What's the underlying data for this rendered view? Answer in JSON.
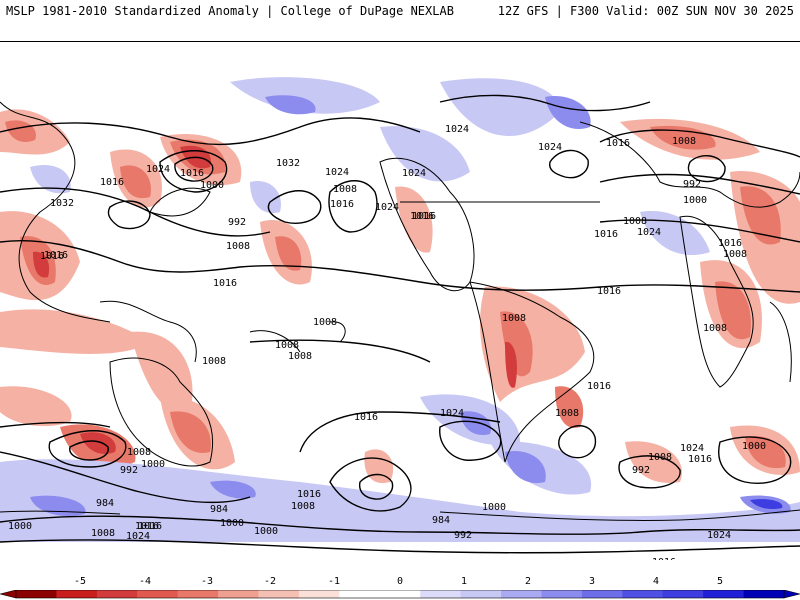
{
  "header": {
    "left_title": "MSLP 1981-2010 Standardized Anomaly | College of DuPage NEXLAB",
    "right_title": "12Z GFS | F300 Valid: 00Z SUN NOV 30 2025"
  },
  "map": {
    "projection": "global cylindrical, Pacific-centered",
    "anomaly_colors": {
      "neg_strong": "#d23c3c",
      "neg_mid": "#e8796a",
      "neg_weak": "#f5b2a4",
      "pos_weak": "#c8c8f5",
      "pos_mid": "#8c8cee",
      "pos_strong": "#3d3de0"
    },
    "contour_labels": [
      "1024",
      "1024",
      "1016",
      "1008",
      "1032",
      "1024",
      "1016",
      "1024",
      "1000",
      "1016",
      "1032",
      "1024",
      "992",
      "1008",
      "1016",
      "1016",
      "1024",
      "1016",
      "992",
      "1000",
      "1008",
      "1016",
      "1024",
      "1016",
      "1008",
      "1016",
      "1008",
      "1008",
      "1008",
      "1008",
      "1008",
      "1016",
      "1016",
      "1016",
      "1008",
      "1024",
      "1008",
      "1016",
      "1008",
      "1016",
      "1000",
      "1024",
      "1016",
      "992",
      "1008",
      "1008",
      "1000",
      "992",
      "984",
      "984",
      "1016",
      "1008",
      "1000",
      "984",
      "992",
      "1016",
      "1000",
      "1000",
      "1008",
      "1024",
      "1016",
      "1000",
      "1024",
      "1008",
      "1000",
      "1008",
      "1016"
    ]
  },
  "colorbar": {
    "ticks": [
      "-5",
      "-4",
      "-3",
      "-2",
      "-1",
      "0",
      "1",
      "2",
      "3",
      "4",
      "5"
    ],
    "colors": [
      "#8b0000",
      "#c81e1e",
      "#d23c3c",
      "#e15a50",
      "#e8796a",
      "#f0a090",
      "#f5c0b4",
      "#fbe0da",
      "#ffffff",
      "#ffffff",
      "#dcdcfa",
      "#c8c8f5",
      "#aaaaf2",
      "#8c8cee",
      "#6e6ee8",
      "#5050e4",
      "#3d3de0",
      "#2020d8",
      "#0000b4"
    ]
  }
}
